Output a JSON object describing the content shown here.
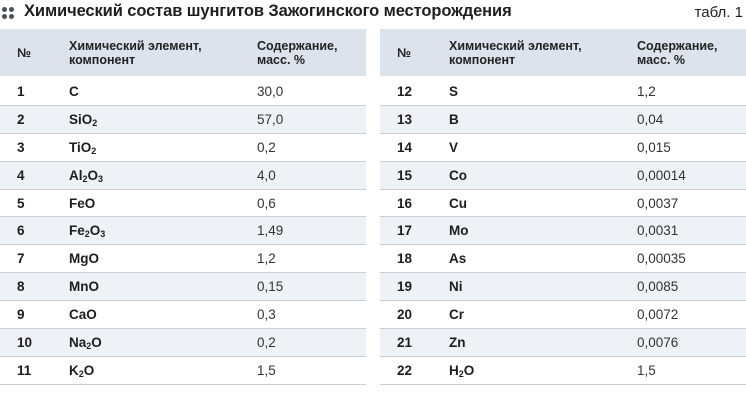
{
  "header": {
    "title": "Химический состав шунгитов Зажогинского месторождения",
    "label": "табл. 1"
  },
  "table": {
    "columns": [
      "№",
      "Химический элемент, компонент",
      "Содержание, масс. %"
    ],
    "left_rows": [
      {
        "num": "1",
        "name": "C",
        "value": "30,0"
      },
      {
        "num": "2",
        "name": "SiO₂",
        "value": "57,0"
      },
      {
        "num": "3",
        "name": "TiO₂",
        "value": "0,2"
      },
      {
        "num": "4",
        "name": "Al₂O₃",
        "value": "4,0"
      },
      {
        "num": "5",
        "name": "FeO",
        "value": "0,6"
      },
      {
        "num": "6",
        "name": "Fe₂O₃",
        "value": "1,49"
      },
      {
        "num": "7",
        "name": "MgO",
        "value": "1,2"
      },
      {
        "num": "8",
        "name": "MnO",
        "value": "0,15"
      },
      {
        "num": "9",
        "name": "CaO",
        "value": "0,3"
      },
      {
        "num": "10",
        "name": "Na₂O",
        "value": "0,2"
      },
      {
        "num": "11",
        "name": "K₂O",
        "value": "1,5"
      }
    ],
    "right_rows": [
      {
        "num": "12",
        "name": "S",
        "value": "1,2"
      },
      {
        "num": "13",
        "name": "B",
        "value": "0,04"
      },
      {
        "num": "14",
        "name": "V",
        "value": "0,015"
      },
      {
        "num": "15",
        "name": "Co",
        "value": "0,00014"
      },
      {
        "num": "16",
        "name": "Cu",
        "value": "0,0037"
      },
      {
        "num": "17",
        "name": "Mo",
        "value": "0,0031"
      },
      {
        "num": "18",
        "name": "As",
        "value": "0,00035"
      },
      {
        "num": "19",
        "name": "Ni",
        "value": "0,0085"
      },
      {
        "num": "20",
        "name": "Cr",
        "value": "0,0072"
      },
      {
        "num": "21",
        "name": "Zn",
        "value": "0,0076"
      },
      {
        "num": "22",
        "name": "H₂O",
        "value": "1,5"
      }
    ]
  },
  "colors": {
    "header_bg": "#dde3ec",
    "stripe_bg": "#eef1f6",
    "row_border": "#c9ced6"
  },
  "icons": [
    "dots-icon"
  ]
}
